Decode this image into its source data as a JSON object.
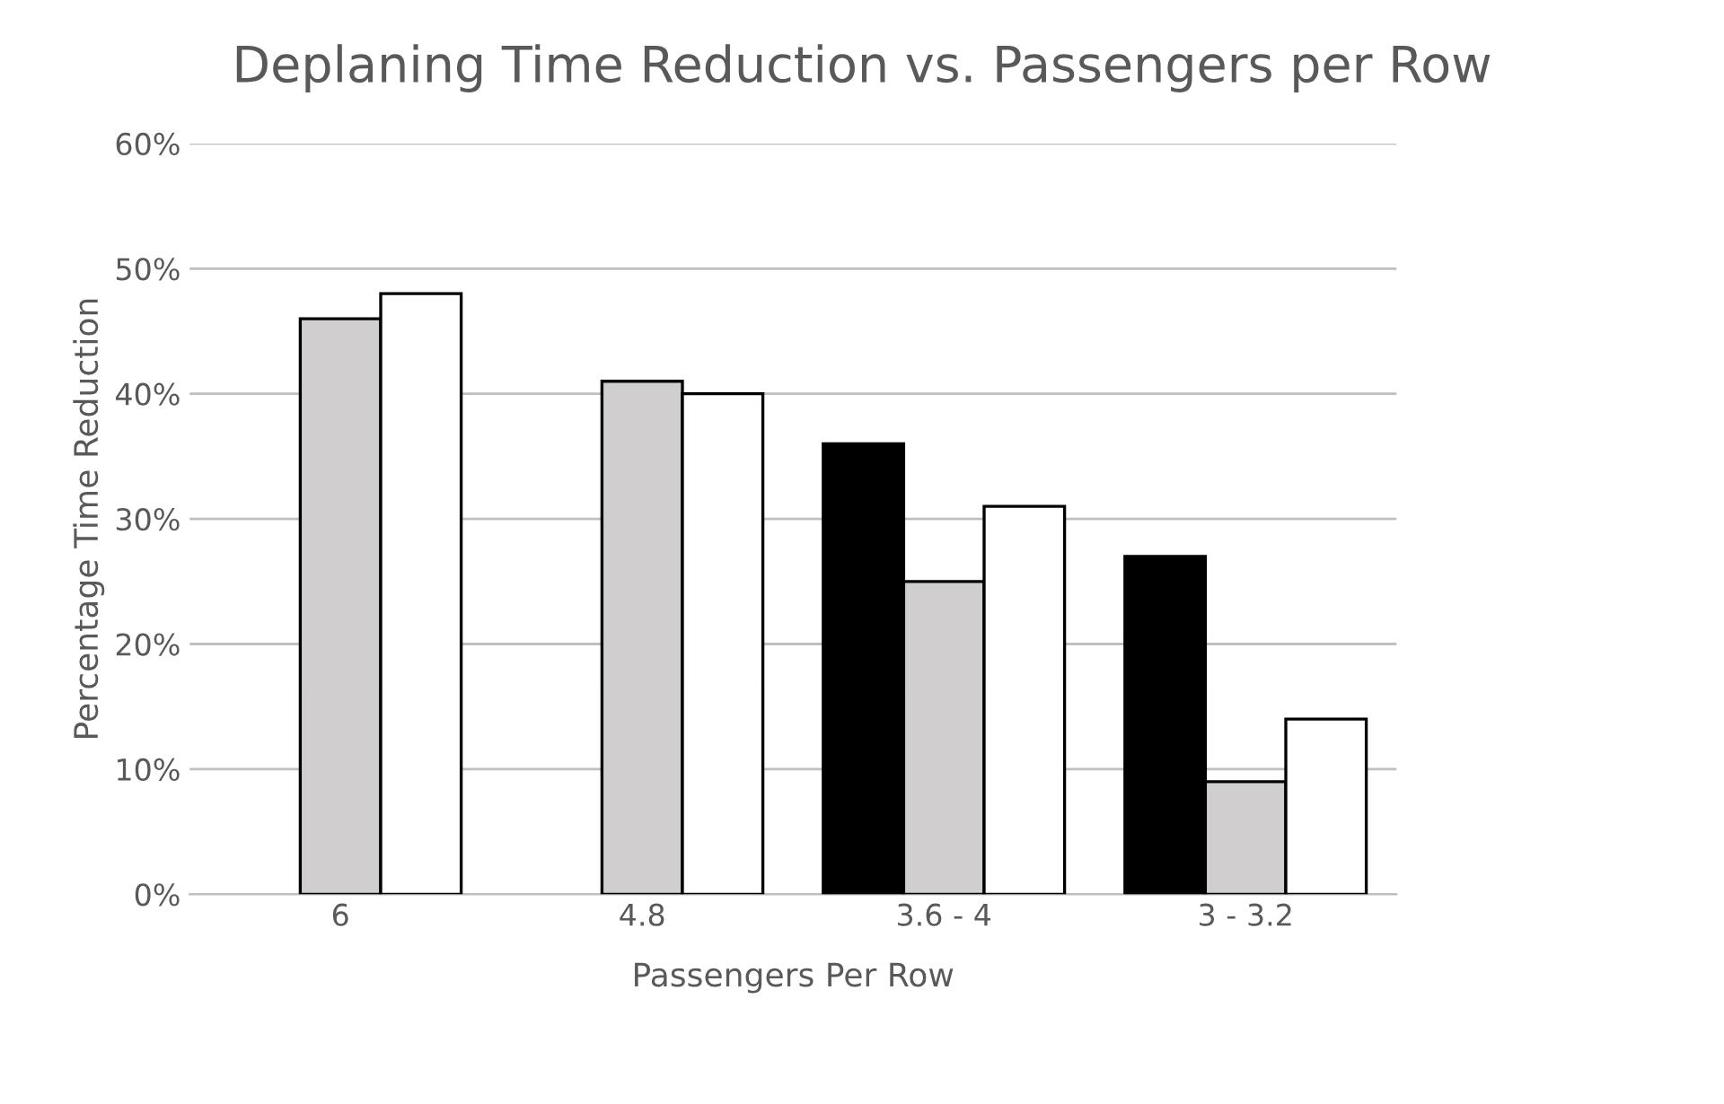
{
  "chart_data": {
    "type": "bar",
    "title": "Deplaning Time Reduction vs. Passengers per Row",
    "xlabel": "Passengers Per Row",
    "ylabel": "Percentage Time Reduction",
    "categories": [
      "6",
      "4.8",
      "3.6 - 4",
      "3 - 3.2"
    ],
    "series": [
      {
        "color": "#000000",
        "values": [
          null,
          null,
          36,
          27
        ]
      },
      {
        "color": "#d0cece",
        "values": [
          46,
          41,
          25,
          9
        ]
      },
      {
        "color": "#ffffff",
        "values": [
          48,
          40,
          31,
          14
        ]
      }
    ],
    "ylim": [
      0,
      60
    ],
    "yticks": [
      {
        "value": 0,
        "label": "0%"
      },
      {
        "value": 10,
        "label": "10%"
      },
      {
        "value": 20,
        "label": "20%"
      },
      {
        "value": 30,
        "label": "30%"
      },
      {
        "value": 40,
        "label": "40%"
      },
      {
        "value": 50,
        "label": "50%"
      },
      {
        "value": 60,
        "label": "60%"
      }
    ],
    "grid": "y"
  }
}
